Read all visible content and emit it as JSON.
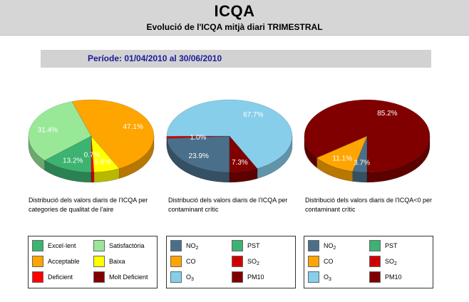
{
  "header": {
    "title": "ICQA",
    "subtitle": "Evolució de l'ICQA mitjà diari TRIMESTRAL"
  },
  "period": "Període: 01/04/2010 al 30/06/2010",
  "chart_data": [
    {
      "type": "pie",
      "caption": "Distribució dels valors diaris de l'ICQA per categories de qualitat de l'aire",
      "categories": [
        "Excel·lent",
        "Satisfactòria",
        "Acceptable",
        "Baixa",
        "Deficient",
        "Molt Deficient"
      ],
      "values": [
        13.2,
        31.4,
        47.1,
        6.6,
        0.7,
        0.0
      ],
      "labels": [
        "13.2%",
        "31.4%",
        "47.1%",
        "6.6%",
        "0.7%",
        ""
      ],
      "colors": [
        "#3cb371",
        "#98e898",
        "#ffa500",
        "#ffff00",
        "#ff0000",
        "#800000"
      ]
    },
    {
      "type": "pie",
      "caption": "Distribució dels valors diaris de l'ICQA per contaminant crític",
      "categories": [
        "NO2",
        "PST",
        "CO",
        "SO2",
        "O3",
        "PM10"
      ],
      "values": [
        23.9,
        0.0,
        0.0,
        1.0,
        67.7,
        7.3
      ],
      "labels": [
        "23.9%",
        "",
        "",
        "1.0%",
        "67.7%",
        "7.3%"
      ],
      "colors": [
        "#4a6f8a",
        "#3cb371",
        "#ffa500",
        "#d00000",
        "#87ceeb",
        "#800000"
      ]
    },
    {
      "type": "pie",
      "caption": "Distribució dels valors diaris de l'ICQA<0 per contaminant crític",
      "categories": [
        "NO2",
        "PST",
        "CO",
        "SO2",
        "O3",
        "PM10"
      ],
      "values": [
        3.7,
        0.0,
        11.1,
        0.0,
        0.0,
        85.2
      ],
      "labels": [
        "3.7%",
        "",
        "11.1%",
        "",
        "",
        "85.2%"
      ],
      "colors": [
        "#4a6f8a",
        "#3cb371",
        "#ffa500",
        "#d00000",
        "#87ceeb",
        "#800000"
      ]
    }
  ],
  "legends": [
    {
      "items": [
        {
          "label": "Excel·lent",
          "color": "#3cb371"
        },
        {
          "label": "Satisfactòria",
          "color": "#98e898"
        },
        {
          "label": "Acceptable",
          "color": "#ffa500"
        },
        {
          "label": "Baixa",
          "color": "#ffff00"
        },
        {
          "label": "Deficient",
          "color": "#ff0000"
        },
        {
          "label": "Molt Deficient",
          "color": "#800000"
        }
      ]
    },
    {
      "items": [
        {
          "label": "NO",
          "sub": "2",
          "color": "#4a6f8a"
        },
        {
          "label": "PST",
          "color": "#3cb371"
        },
        {
          "label": "CO",
          "color": "#ffa500"
        },
        {
          "label": "SO",
          "sub": "2",
          "color": "#d00000"
        },
        {
          "label": "O",
          "sub": "3",
          "color": "#87ceeb"
        },
        {
          "label": "PM10",
          "color": "#800000"
        }
      ]
    },
    {
      "items": [
        {
          "label": "NO",
          "sub": "2",
          "color": "#4a6f8a"
        },
        {
          "label": "PST",
          "color": "#3cb371"
        },
        {
          "label": "CO",
          "color": "#ffa500"
        },
        {
          "label": "SO",
          "sub": "2",
          "color": "#d00000"
        },
        {
          "label": "O",
          "sub": "3",
          "color": "#87ceeb"
        },
        {
          "label": "PM10",
          "color": "#800000"
        }
      ]
    }
  ]
}
